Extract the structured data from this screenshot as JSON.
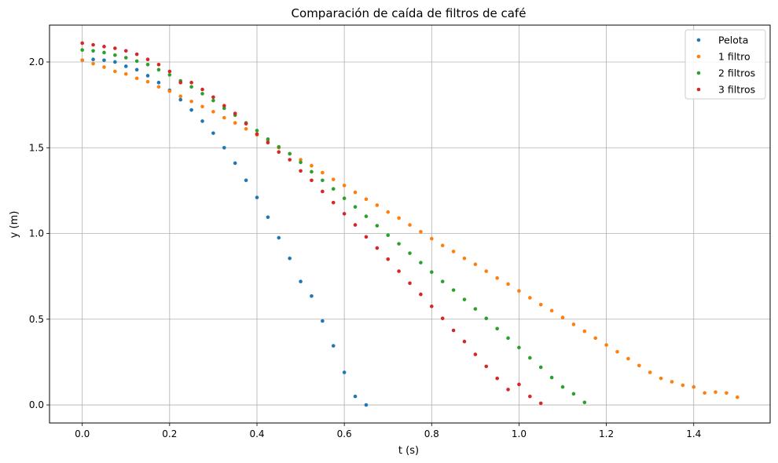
{
  "chart_data": {
    "type": "scatter",
    "title": "Comparación de caída de filtros de café",
    "xlabel": "t (s)",
    "ylabel": "y (m)",
    "xlim": [
      -0.075,
      1.575
    ],
    "ylim": [
      -0.105,
      2.215
    ],
    "xticks": [
      0.0,
      0.2,
      0.4,
      0.6,
      0.8,
      1.0,
      1.2,
      1.4
    ],
    "xtick_labels": [
      "0.0",
      "0.2",
      "0.4",
      "0.6",
      "0.8",
      "1.0",
      "1.2",
      "1.4"
    ],
    "yticks": [
      0.0,
      0.5,
      1.0,
      1.5,
      2.0
    ],
    "ytick_labels": [
      "0.0",
      "0.5",
      "1.0",
      "1.5",
      "2.0"
    ],
    "grid": true,
    "legend_position": "top-right",
    "series": [
      {
        "name": "Pelota",
        "color": "#1f77b4",
        "points": [
          [
            0.0,
            2.01
          ],
          [
            0.025,
            2.015
          ],
          [
            0.05,
            2.01
          ],
          [
            0.075,
            2.0
          ],
          [
            0.1,
            1.975
          ],
          [
            0.125,
            1.955
          ],
          [
            0.15,
            1.92
          ],
          [
            0.175,
            1.88
          ],
          [
            0.2,
            1.835
          ],
          [
            0.225,
            1.78
          ],
          [
            0.25,
            1.72
          ],
          [
            0.275,
            1.655
          ],
          [
            0.3,
            1.585
          ],
          [
            0.325,
            1.5
          ],
          [
            0.35,
            1.41
          ],
          [
            0.375,
            1.31
          ],
          [
            0.4,
            1.21
          ],
          [
            0.425,
            1.095
          ],
          [
            0.45,
            0.975
          ],
          [
            0.475,
            0.855
          ],
          [
            0.5,
            0.72
          ],
          [
            0.525,
            0.635
          ],
          [
            0.55,
            0.49
          ],
          [
            0.575,
            0.345
          ],
          [
            0.6,
            0.19
          ],
          [
            0.625,
            0.05
          ],
          [
            0.65,
            0.0
          ]
        ]
      },
      {
        "name": "1 filtro",
        "color": "#ff7f0e",
        "points": [
          [
            0.0,
            2.01
          ],
          [
            0.025,
            1.99
          ],
          [
            0.05,
            1.97
          ],
          [
            0.075,
            1.945
          ],
          [
            0.1,
            1.93
          ],
          [
            0.125,
            1.905
          ],
          [
            0.15,
            1.885
          ],
          [
            0.175,
            1.855
          ],
          [
            0.2,
            1.83
          ],
          [
            0.225,
            1.8
          ],
          [
            0.25,
            1.77
          ],
          [
            0.275,
            1.74
          ],
          [
            0.3,
            1.71
          ],
          [
            0.325,
            1.675
          ],
          [
            0.35,
            1.645
          ],
          [
            0.375,
            1.61
          ],
          [
            0.4,
            1.575
          ],
          [
            0.425,
            1.54
          ],
          [
            0.45,
            1.5
          ],
          [
            0.475,
            1.465
          ],
          [
            0.5,
            1.43
          ],
          [
            0.525,
            1.395
          ],
          [
            0.55,
            1.355
          ],
          [
            0.575,
            1.315
          ],
          [
            0.6,
            1.28
          ],
          [
            0.625,
            1.24
          ],
          [
            0.65,
            1.2
          ],
          [
            0.675,
            1.165
          ],
          [
            0.7,
            1.125
          ],
          [
            0.725,
            1.09
          ],
          [
            0.75,
            1.05
          ],
          [
            0.775,
            1.01
          ],
          [
            0.8,
            0.97
          ],
          [
            0.825,
            0.93
          ],
          [
            0.85,
            0.895
          ],
          [
            0.875,
            0.855
          ],
          [
            0.9,
            0.82
          ],
          [
            0.925,
            0.78
          ],
          [
            0.95,
            0.74
          ],
          [
            0.975,
            0.705
          ],
          [
            1.0,
            0.665
          ],
          [
            1.025,
            0.625
          ],
          [
            1.05,
            0.585
          ],
          [
            1.075,
            0.55
          ],
          [
            1.1,
            0.51
          ],
          [
            1.125,
            0.47
          ],
          [
            1.15,
            0.43
          ],
          [
            1.175,
            0.39
          ],
          [
            1.2,
            0.35
          ],
          [
            1.225,
            0.31
          ],
          [
            1.25,
            0.27
          ],
          [
            1.275,
            0.23
          ],
          [
            1.3,
            0.19
          ],
          [
            1.325,
            0.155
          ],
          [
            1.35,
            0.135
          ],
          [
            1.375,
            0.115
          ],
          [
            1.4,
            0.105
          ],
          [
            1.425,
            0.07
          ],
          [
            1.45,
            0.075
          ],
          [
            1.475,
            0.07
          ],
          [
            1.5,
            0.045
          ]
        ]
      },
      {
        "name": "2 filtros",
        "color": "#2ca02c",
        "points": [
          [
            0.0,
            2.07
          ],
          [
            0.025,
            2.065
          ],
          [
            0.05,
            2.055
          ],
          [
            0.075,
            2.04
          ],
          [
            0.1,
            2.025
          ],
          [
            0.125,
            2.005
          ],
          [
            0.15,
            1.985
          ],
          [
            0.175,
            1.955
          ],
          [
            0.2,
            1.925
          ],
          [
            0.225,
            1.89
          ],
          [
            0.25,
            1.855
          ],
          [
            0.275,
            1.815
          ],
          [
            0.3,
            1.775
          ],
          [
            0.325,
            1.73
          ],
          [
            0.35,
            1.69
          ],
          [
            0.375,
            1.645
          ],
          [
            0.4,
            1.6
          ],
          [
            0.425,
            1.55
          ],
          [
            0.45,
            1.505
          ],
          [
            0.475,
            1.465
          ],
          [
            0.5,
            1.415
          ],
          [
            0.525,
            1.36
          ],
          [
            0.55,
            1.31
          ],
          [
            0.575,
            1.26
          ],
          [
            0.6,
            1.205
          ],
          [
            0.625,
            1.155
          ],
          [
            0.65,
            1.1
          ],
          [
            0.675,
            1.045
          ],
          [
            0.7,
            0.99
          ],
          [
            0.725,
            0.94
          ],
          [
            0.75,
            0.885
          ],
          [
            0.775,
            0.83
          ],
          [
            0.8,
            0.775
          ],
          [
            0.825,
            0.72
          ],
          [
            0.85,
            0.67
          ],
          [
            0.875,
            0.615
          ],
          [
            0.9,
            0.56
          ],
          [
            0.925,
            0.505
          ],
          [
            0.95,
            0.445
          ],
          [
            0.975,
            0.39
          ],
          [
            1.0,
            0.335
          ],
          [
            1.025,
            0.275
          ],
          [
            1.05,
            0.22
          ],
          [
            1.075,
            0.16
          ],
          [
            1.1,
            0.105
          ],
          [
            1.125,
            0.065
          ],
          [
            1.15,
            0.015
          ]
        ]
      },
      {
        "name": "3 filtros",
        "color": "#d62728",
        "points": [
          [
            0.0,
            2.11
          ],
          [
            0.025,
            2.1
          ],
          [
            0.05,
            2.09
          ],
          [
            0.075,
            2.08
          ],
          [
            0.1,
            2.065
          ],
          [
            0.125,
            2.045
          ],
          [
            0.15,
            2.015
          ],
          [
            0.175,
            1.985
          ],
          [
            0.2,
            1.945
          ],
          [
            0.225,
            1.88
          ],
          [
            0.25,
            1.88
          ],
          [
            0.275,
            1.84
          ],
          [
            0.3,
            1.795
          ],
          [
            0.325,
            1.745
          ],
          [
            0.35,
            1.7
          ],
          [
            0.375,
            1.64
          ],
          [
            0.4,
            1.58
          ],
          [
            0.425,
            1.53
          ],
          [
            0.45,
            1.475
          ],
          [
            0.475,
            1.43
          ],
          [
            0.5,
            1.365
          ],
          [
            0.525,
            1.31
          ],
          [
            0.55,
            1.245
          ],
          [
            0.575,
            1.18
          ],
          [
            0.6,
            1.115
          ],
          [
            0.625,
            1.05
          ],
          [
            0.65,
            0.98
          ],
          [
            0.675,
            0.915
          ],
          [
            0.7,
            0.85
          ],
          [
            0.725,
            0.78
          ],
          [
            0.75,
            0.71
          ],
          [
            0.775,
            0.645
          ],
          [
            0.8,
            0.575
          ],
          [
            0.825,
            0.505
          ],
          [
            0.85,
            0.435
          ],
          [
            0.875,
            0.37
          ],
          [
            0.9,
            0.295
          ],
          [
            0.925,
            0.225
          ],
          [
            0.95,
            0.155
          ],
          [
            0.975,
            0.09
          ],
          [
            1.0,
            0.12
          ],
          [
            1.025,
            0.05
          ],
          [
            1.05,
            0.01
          ]
        ]
      }
    ]
  }
}
